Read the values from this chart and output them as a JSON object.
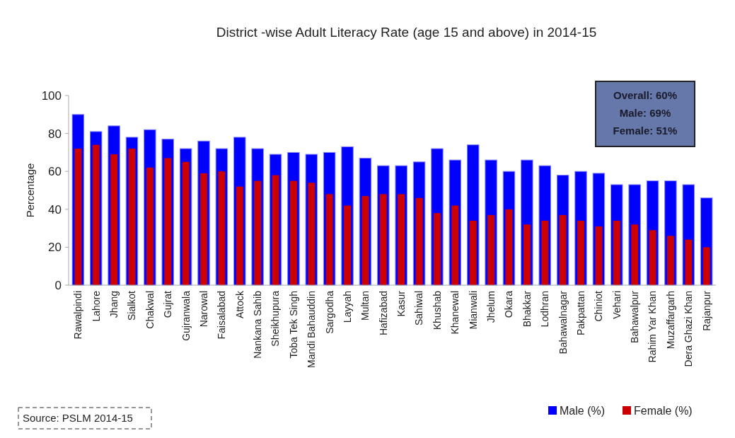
{
  "chart_data": {
    "type": "bar",
    "title": "District -wise Adult Literacy Rate (age 15 and above) in 2014-15",
    "ylabel": "Percentage",
    "categories": [
      "Rawalpindi",
      "Lahore",
      "Jhang",
      "Sialkot",
      "Chakwal",
      "Gujrat",
      "Gujranwala",
      "Narowal",
      "Faisalabad",
      "Attock",
      "Nankana Sahib",
      "Sheikhupura",
      "Toba Tek Singh",
      "Mandi Bahauddin",
      "Sargodha",
      "Layyah",
      "Multan",
      "Hafizabad",
      "Kasur",
      "Sahiwal",
      "Khushab",
      "Khanewal",
      "Mianwali",
      "Jhelum",
      "Okara",
      "Bhakkar",
      "Lodhran",
      "Bahawalnagar",
      "Pakpattan",
      "Chiniot",
      "Vehari",
      "Bahawalpur",
      "Rahim Yar Khan",
      "Muzaffargarh",
      "Dera Ghazi Khan",
      "Rajanpur"
    ],
    "series": [
      {
        "name": "Male (%)",
        "color": "#0000ff",
        "values": [
          90,
          81,
          84,
          78,
          82,
          77,
          72,
          76,
          72,
          78,
          72,
          69,
          70,
          69,
          70,
          73,
          67,
          63,
          63,
          65,
          72,
          66,
          74,
          66,
          60,
          66,
          63,
          58,
          60,
          59,
          53,
          53,
          55,
          55,
          53,
          46
        ]
      },
      {
        "name": "Female (%)",
        "color": "#cc0000",
        "values": [
          72,
          74,
          69,
          72,
          62,
          67,
          65,
          59,
          60,
          52,
          55,
          58,
          55,
          54,
          48,
          42,
          47,
          48,
          48,
          46,
          38,
          42,
          34,
          37,
          40,
          32,
          34,
          37,
          34,
          31,
          34,
          32,
          29,
          26,
          24,
          20
        ]
      }
    ],
    "ylim": [
      0,
      100
    ],
    "yticks": [
      0,
      20,
      40,
      60,
      80,
      100
    ],
    "grid": false,
    "legend": "bottom right",
    "annotations": [
      "Overall: 60%\nMale: 69%\nFemale: 51%",
      "Source: PSLM  2014-15"
    ]
  }
}
